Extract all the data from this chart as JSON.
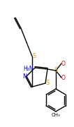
{
  "background_color": "#ffffff",
  "bond_color": "#000000",
  "atom_colors": {
    "S": "#d4a000",
    "N": "#0000cc",
    "O": "#cc0000",
    "C": "#000000",
    "H": "#000000"
  },
  "figsize": [
    1.06,
    1.8
  ],
  "dpi": 100
}
